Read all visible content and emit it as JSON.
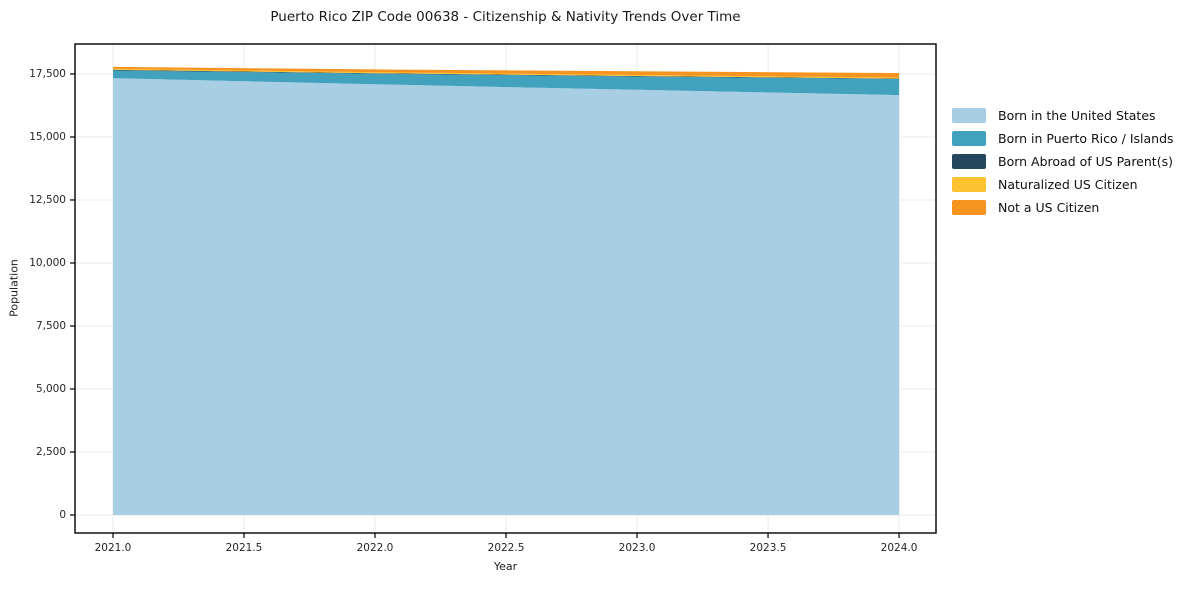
{
  "chart_data": {
    "type": "area",
    "stacked": true,
    "title": "Puerto Rico ZIP Code 00638 - Citizenship & Nativity Trends Over Time",
    "xlabel": "Year",
    "ylabel": "Population",
    "x": [
      2021,
      2022,
      2023,
      2024
    ],
    "series": [
      {
        "name": "Born in the United States",
        "color": "#a7cee3",
        "values": [
          17330,
          17090,
          16870,
          16660
        ]
      },
      {
        "name": "Born in Puerto Rico / Islands",
        "color": "#42a2be",
        "values": [
          310,
          420,
          530,
          640
        ]
      },
      {
        "name": "Born Abroad of US Parent(s)",
        "color": "#24475d",
        "values": [
          25,
          22,
          18,
          15
        ]
      },
      {
        "name": "Naturalized US Citizen",
        "color": "#fcc22f",
        "values": [
          40,
          40,
          42,
          45
        ]
      },
      {
        "name": "Not a US Citizen",
        "color": "#f7941f",
        "values": [
          80,
          110,
          145,
          175
        ]
      }
    ],
    "xlim": [
      2020.855,
      2024.141
    ],
    "ylim": [
      -714,
      18689
    ],
    "xticks": {
      "values": [
        2021,
        2021.5,
        2022,
        2022.5,
        2023,
        2023.5,
        2024
      ],
      "labels": [
        "2021.0",
        "2021.5",
        "2022.0",
        "2022.5",
        "2023.0",
        "2023.5",
        "2024.0"
      ]
    },
    "yticks": {
      "values": [
        0,
        2500,
        5000,
        7500,
        10000,
        12500,
        15000,
        17500
      ],
      "labels": [
        "0",
        "2,500",
        "5,000",
        "7,500",
        "10,000",
        "12,500",
        "15,000",
        "17,500"
      ]
    },
    "grid": true,
    "grid_color": "#ebebeb",
    "spine_color": "#000000",
    "background": "#ffffff",
    "legend_position": "right-outside"
  }
}
